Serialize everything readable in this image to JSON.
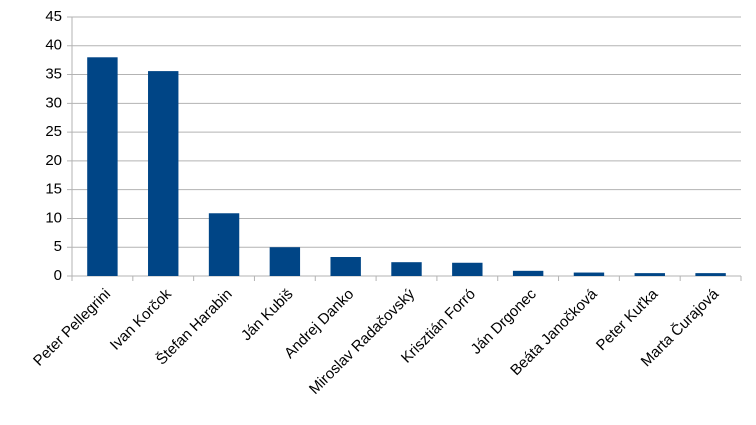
{
  "chart_data": {
    "type": "bar",
    "categories": [
      "Peter Pellegrini",
      "Ivan Korčok",
      "Štefan Harabin",
      "Ján Kubiš",
      "Andrej Danko",
      "Miroslav Radačovský",
      "Krisztián Forró",
      "Ján Drgonec",
      "Beáta Janočková",
      "Peter Kuťka",
      "Marta Čurajová"
    ],
    "values": [
      38.0,
      35.6,
      10.9,
      5.0,
      3.3,
      2.4,
      2.3,
      0.9,
      0.6,
      0.5,
      0.5
    ],
    "color": "#004586",
    "ylim": [
      0,
      45
    ],
    "yticks": [
      0,
      5,
      10,
      15,
      20,
      25,
      30,
      35,
      40,
      45
    ],
    "grid": true
  }
}
